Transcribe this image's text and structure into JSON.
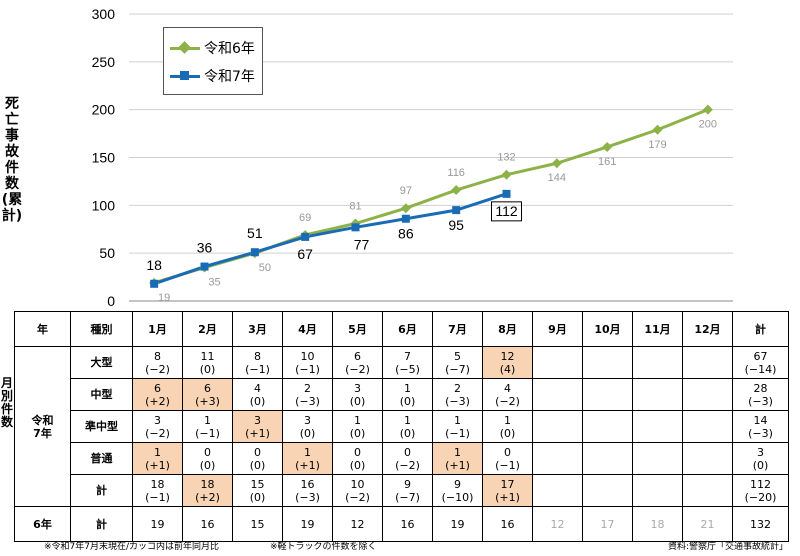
{
  "chart_data": {
    "type": "line",
    "ylabel": "死亡事故件数(累計)",
    "ylim": [
      0,
      300
    ],
    "yticks": [
      "0",
      "50",
      "100",
      "150",
      "200",
      "250",
      "300"
    ],
    "grid": true,
    "legend_placement": "top-left",
    "series": [
      {
        "name": "令和6年",
        "color": "#8db248",
        "marker": "diamond",
        "values": [
          19,
          35,
          50,
          69,
          81,
          97,
          116,
          132,
          144,
          161,
          179,
          200
        ]
      },
      {
        "name": "令和7年",
        "color": "#1a6bb5",
        "marker": "square",
        "values": [
          18,
          36,
          51,
          67,
          77,
          86,
          95,
          112
        ]
      }
    ]
  },
  "table": {
    "headers": [
      "年",
      "種別",
      "1月",
      "2月",
      "3月",
      "4月",
      "5月",
      "6月",
      "7月",
      "8月",
      "9月",
      "10月",
      "11月",
      "12月",
      "計"
    ],
    "side_label": "月別件数",
    "year7": "令和\n7年",
    "rows": [
      {
        "type": "大型",
        "cells": [
          [
            "8",
            "(−2)"
          ],
          [
            "11",
            "(0)"
          ],
          [
            "8",
            "(−1)"
          ],
          [
            "10",
            "(−1)"
          ],
          [
            "6",
            "(−2)"
          ],
          [
            "7",
            "(−5)"
          ],
          [
            "5",
            "(−7)"
          ],
          [
            "12",
            "(4)"
          ],
          [
            "",
            ""
          ],
          [
            "",
            ""
          ],
          [
            "",
            ""
          ],
          [
            "",
            ""
          ]
        ],
        "hl": [
          7
        ],
        "total": [
          "67",
          "(−14)"
        ]
      },
      {
        "type": "中型",
        "cells": [
          [
            "6",
            "(+2)"
          ],
          [
            "6",
            "(+3)"
          ],
          [
            "4",
            "(0)"
          ],
          [
            "2",
            "(−3)"
          ],
          [
            "3",
            "(0)"
          ],
          [
            "1",
            "(0)"
          ],
          [
            "2",
            "(−3)"
          ],
          [
            "4",
            "(−2)"
          ],
          [
            "",
            ""
          ],
          [
            "",
            ""
          ],
          [
            "",
            ""
          ],
          [
            "",
            ""
          ]
        ],
        "hl": [
          0,
          1
        ],
        "total": [
          "28",
          "(−3)"
        ]
      },
      {
        "type": "準中型",
        "cells": [
          [
            "3",
            "(−2)"
          ],
          [
            "1",
            "(−1)"
          ],
          [
            "3",
            "(+1)"
          ],
          [
            "3",
            "(0)"
          ],
          [
            "1",
            "(0)"
          ],
          [
            "1",
            "(0)"
          ],
          [
            "1",
            "(−1)"
          ],
          [
            "1",
            "(0)"
          ],
          [
            "",
            ""
          ],
          [
            "",
            ""
          ],
          [
            "",
            ""
          ],
          [
            "",
            ""
          ]
        ],
        "hl": [
          2
        ],
        "total": [
          "14",
          "(−3)"
        ]
      },
      {
        "type": "普通",
        "cells": [
          [
            "1",
            "(+1)"
          ],
          [
            "0",
            "(0)"
          ],
          [
            "0",
            "(0)"
          ],
          [
            "1",
            "(+1)"
          ],
          [
            "0",
            "(0)"
          ],
          [
            "0",
            "(−2)"
          ],
          [
            "1",
            "(+1)"
          ],
          [
            "0",
            "(−1)"
          ],
          [
            "",
            ""
          ],
          [
            "",
            ""
          ],
          [
            "",
            ""
          ],
          [
            "",
            ""
          ]
        ],
        "hl": [
          0,
          3,
          6
        ],
        "total": [
          "3",
          "(0)"
        ]
      },
      {
        "type": "計",
        "cells": [
          [
            "18",
            "(−1)"
          ],
          [
            "18",
            "(+2)"
          ],
          [
            "15",
            "(0)"
          ],
          [
            "16",
            "(−3)"
          ],
          [
            "10",
            "(−2)"
          ],
          [
            "9",
            "(−7)"
          ],
          [
            "9",
            "(−10)"
          ],
          [
            "17",
            "(+1)"
          ],
          [
            "",
            ""
          ],
          [
            "",
            ""
          ],
          [
            "",
            ""
          ],
          [
            "",
            ""
          ]
        ],
        "hl": [
          1,
          7
        ],
        "total": [
          "112",
          "(−20)"
        ]
      }
    ],
    "year6_label": "6年",
    "year6_type": "計",
    "year6_values": [
      "19",
      "16",
      "15",
      "19",
      "12",
      "16",
      "19",
      "16",
      "12",
      "17",
      "18",
      "21"
    ],
    "year6_grey_from": 8,
    "year6_total": "132"
  },
  "footer": {
    "left": "※令和7年7月末現在/カッコ内は前年同月比",
    "middle": "※軽トラックの件数を除く",
    "right": "資料:警察庁「交通事故統計」"
  }
}
